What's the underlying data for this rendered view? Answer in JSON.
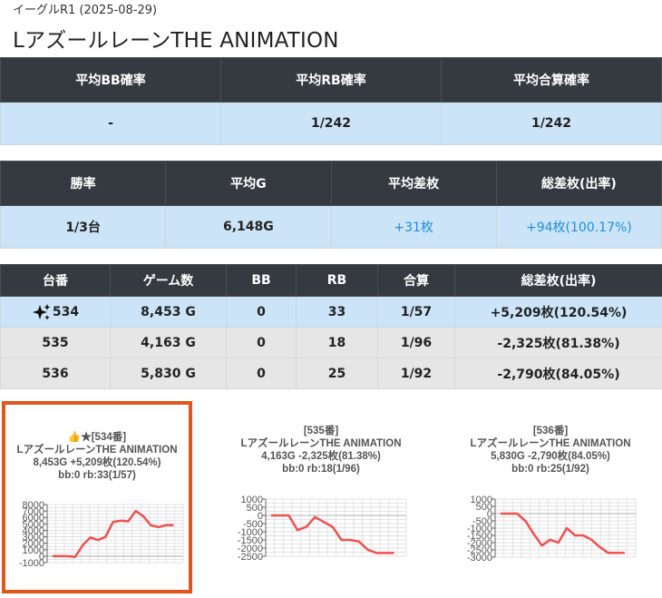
{
  "header": {
    "subtitle": "イーグルR1 (2025-08-29)",
    "title": "LアズールレーンTHE ANIMATION"
  },
  "summary1": {
    "headers": [
      "平均BB確率",
      "平均RB確率",
      "平均合算確率"
    ],
    "values": [
      "-",
      "1/242",
      "1/242"
    ]
  },
  "summary2": {
    "headers": [
      "勝率",
      "平均G",
      "平均差枚",
      "総差枚(出率)"
    ],
    "values": [
      "1/3台",
      "6,148G",
      "+31枚",
      "+94枚(100.17%)"
    ]
  },
  "machines": {
    "headers": [
      "台番",
      "ゲーム数",
      "BB",
      "RB",
      "合算",
      "総差枚(出率)"
    ],
    "rows": [
      [
        "534",
        "8,453 G",
        "0",
        "33",
        "1/57",
        "+5,209枚(120.54%)"
      ],
      [
        "535",
        "4,163 G",
        "0",
        "18",
        "1/96",
        "-2,325枚(81.38%)"
      ],
      [
        "536",
        "5,830 G",
        "0",
        "25",
        "1/92",
        "-2,790枚(84.05%)"
      ]
    ]
  },
  "cards": [
    {
      "line1": "👍★[534番]",
      "line2": "LアズールレーンTHE ANIMATION",
      "line3": "8,453G +5,209枚(120.54%)",
      "line4": "bb:0 rb:33(1/57)"
    },
    {
      "line1": "[535番]",
      "line2": "LアズールレーンTHE ANIMATION",
      "line3": "4,163G -2,325枚(81.38%)",
      "line4": "bb:0 rb:18(1/96)"
    },
    {
      "line1": "[536番]",
      "line2": "LアズールレーンTHE ANIMATION",
      "line3": "5,830G -2,790枚(84.05%)",
      "line4": "bb:0 rb:25(1/92)"
    }
  ],
  "chart_data": [
    {
      "type": "line",
      "ylim": [
        -1000,
        8000
      ],
      "yticks": [
        8000,
        7000,
        6000,
        5000,
        4000,
        3000,
        2000,
        1000,
        0,
        -1000
      ],
      "ytick_labels": [
        "8000",
        "7000",
        "6000",
        "5000",
        "4000",
        "3000",
        "2000",
        "1000",
        "0",
        "-1000"
      ],
      "color": "#f05050",
      "values": [
        0,
        0,
        0,
        -100,
        1700,
        2900,
        2500,
        3000,
        5300,
        5500,
        5400,
        7000,
        6200,
        4800,
        4500,
        4800,
        4800
      ]
    },
    {
      "type": "line",
      "ylim": [
        -2500,
        1000
      ],
      "yticks": [
        1000,
        500,
        0,
        -500,
        -1000,
        -1500,
        -2000,
        -2500
      ],
      "ytick_labels": [
        "1000",
        "500",
        "0",
        "-500",
        "-1000",
        "-1500",
        "-2000",
        "-2500"
      ],
      "color": "#f05050",
      "values": [
        0,
        0,
        0,
        -900,
        -700,
        -100,
        -400,
        -700,
        -1500,
        -1500,
        -1600,
        -2100,
        -2300,
        -2300,
        -2300
      ]
    },
    {
      "type": "line",
      "ylim": [
        -3000,
        1000
      ],
      "yticks": [
        1000,
        500,
        0,
        -500,
        -1000,
        -1500,
        -2000,
        -2500,
        -3000
      ],
      "ytick_labels": [
        "1000",
        "500",
        "0",
        "-500",
        "-1000",
        "-1500",
        "-2000",
        "-2500",
        "-3000"
      ],
      "color": "#f05050",
      "values": [
        0,
        0,
        0,
        -500,
        -1400,
        -2200,
        -1800,
        -2000,
        -1000,
        -1500,
        -1500,
        -1800,
        -2300,
        -2700,
        -2700,
        -2700
      ]
    }
  ]
}
